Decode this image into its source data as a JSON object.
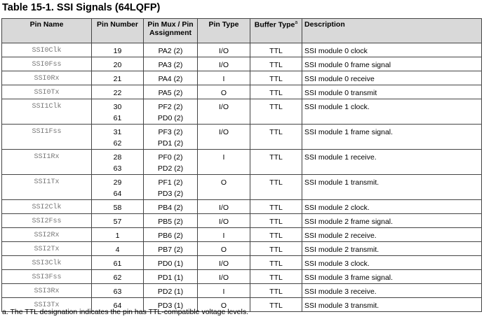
{
  "title": "Table 15-1. SSI Signals (64LQFP)",
  "headers": [
    "Pin Name",
    "Pin Number",
    "Pin Mux / Pin Assignment",
    "Pin Type",
    "Buffer Type",
    "Description"
  ],
  "header_footnote_mark": "a",
  "rows": [
    {
      "name": "SSI0Clk",
      "num": [
        "19"
      ],
      "mux": [
        "PA2 (2)"
      ],
      "type": "I/O",
      "buf": "TTL",
      "desc": "SSI module 0 clock"
    },
    {
      "name": "SSI0Fss",
      "num": [
        "20"
      ],
      "mux": [
        "PA3 (2)"
      ],
      "type": "I/O",
      "buf": "TTL",
      "desc": "SSI module 0 frame signal"
    },
    {
      "name": "SSI0Rx",
      "num": [
        "21"
      ],
      "mux": [
        "PA4 (2)"
      ],
      "type": "I",
      "buf": "TTL",
      "desc": "SSI module 0 receive"
    },
    {
      "name": "SSI0Tx",
      "num": [
        "22"
      ],
      "mux": [
        "PA5 (2)"
      ],
      "type": "O",
      "buf": "TTL",
      "desc": "SSI module 0 transmit"
    },
    {
      "name": "SSI1Clk",
      "num": [
        "30",
        "61"
      ],
      "mux": [
        "PF2 (2)",
        "PD0 (2)"
      ],
      "type": "I/O",
      "buf": "TTL",
      "desc": "SSI module 1 clock."
    },
    {
      "name": "SSI1Fss",
      "num": [
        "31",
        "62"
      ],
      "mux": [
        "PF3 (2)",
        "PD1 (2)"
      ],
      "type": "I/O",
      "buf": "TTL",
      "desc": "SSI module 1 frame signal."
    },
    {
      "name": "SSI1Rx",
      "num": [
        "28",
        "63"
      ],
      "mux": [
        "PF0 (2)",
        "PD2 (2)"
      ],
      "type": "I",
      "buf": "TTL",
      "desc": "SSI module 1 receive."
    },
    {
      "name": "SSI1Tx",
      "num": [
        "29",
        "64"
      ],
      "mux": [
        "PF1 (2)",
        "PD3 (2)"
      ],
      "type": "O",
      "buf": "TTL",
      "desc": "SSI module 1 transmit."
    },
    {
      "name": "SSI2Clk",
      "num": [
        "58"
      ],
      "mux": [
        "PB4 (2)"
      ],
      "type": "I/O",
      "buf": "TTL",
      "desc": "SSI module 2 clock."
    },
    {
      "name": "SSI2Fss",
      "num": [
        "57"
      ],
      "mux": [
        "PB5 (2)"
      ],
      "type": "I/O",
      "buf": "TTL",
      "desc": "SSI module 2 frame signal."
    },
    {
      "name": "SSI2Rx",
      "num": [
        "1"
      ],
      "mux": [
        "PB6 (2)"
      ],
      "type": "I",
      "buf": "TTL",
      "desc": "SSI module 2 receive."
    },
    {
      "name": "SSI2Tx",
      "num": [
        "4"
      ],
      "mux": [
        "PB7 (2)"
      ],
      "type": "O",
      "buf": "TTL",
      "desc": "SSI module 2 transmit."
    },
    {
      "name": "SSI3Clk",
      "num": [
        "61"
      ],
      "mux": [
        "PD0 (1)"
      ],
      "type": "I/O",
      "buf": "TTL",
      "desc": "SSI module 3 clock."
    },
    {
      "name": "SSI3Fss",
      "num": [
        "62"
      ],
      "mux": [
        "PD1 (1)"
      ],
      "type": "I/O",
      "buf": "TTL",
      "desc": "SSI module 3 frame signal."
    },
    {
      "name": "SSI3Rx",
      "num": [
        "63"
      ],
      "mux": [
        "PD2 (1)"
      ],
      "type": "I",
      "buf": "TTL",
      "desc": "SSI module 3 receive."
    },
    {
      "name": "SSI3Tx",
      "num": [
        "64"
      ],
      "mux": [
        "PD3 (1)"
      ],
      "type": "O",
      "buf": "TTL",
      "desc": "SSI module 3 transmit."
    }
  ],
  "footnote": "a. The TTL designation indicates the pin has TTL-compatible voltage levels."
}
